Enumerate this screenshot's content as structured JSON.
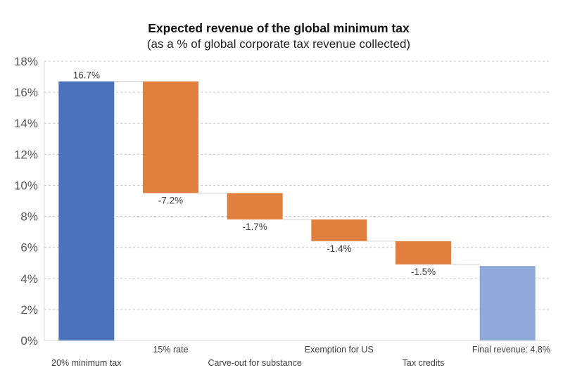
{
  "chart_data": {
    "type": "bar",
    "subtype": "waterfall",
    "title": "Expected revenue of the global minimum tax",
    "subtitle": "(as a % of global corporate tax revenue collected)",
    "xlabel": "",
    "ylabel": "",
    "ylim": [
      0,
      18
    ],
    "yticks": [
      0,
      2,
      4,
      6,
      8,
      10,
      12,
      14,
      16,
      18
    ],
    "ytick_labels": [
      "0%",
      "2%",
      "4%",
      "6%",
      "8%",
      "10%",
      "12%",
      "14%",
      "16%",
      "18%"
    ],
    "grid": true,
    "legend": "none",
    "categories": [
      "20% minimum tax",
      "15% rate",
      "Carve-out for substance",
      "Exemption for US",
      "Tax credits",
      "Final revenue: 4.8%"
    ],
    "values": [
      16.7,
      -7.2,
      -1.7,
      -1.4,
      -1.5,
      4.8
    ],
    "kinds": [
      "total",
      "delta",
      "delta",
      "delta",
      "delta",
      "total"
    ],
    "data_labels": [
      "16.7%",
      "-7.2%",
      "-1.7%",
      "-1.4%",
      "-1.5%",
      ""
    ],
    "colors": {
      "start_total": "#4a72bd",
      "decrease": "#e07f3e",
      "end_total": "#8fa9d8"
    }
  }
}
